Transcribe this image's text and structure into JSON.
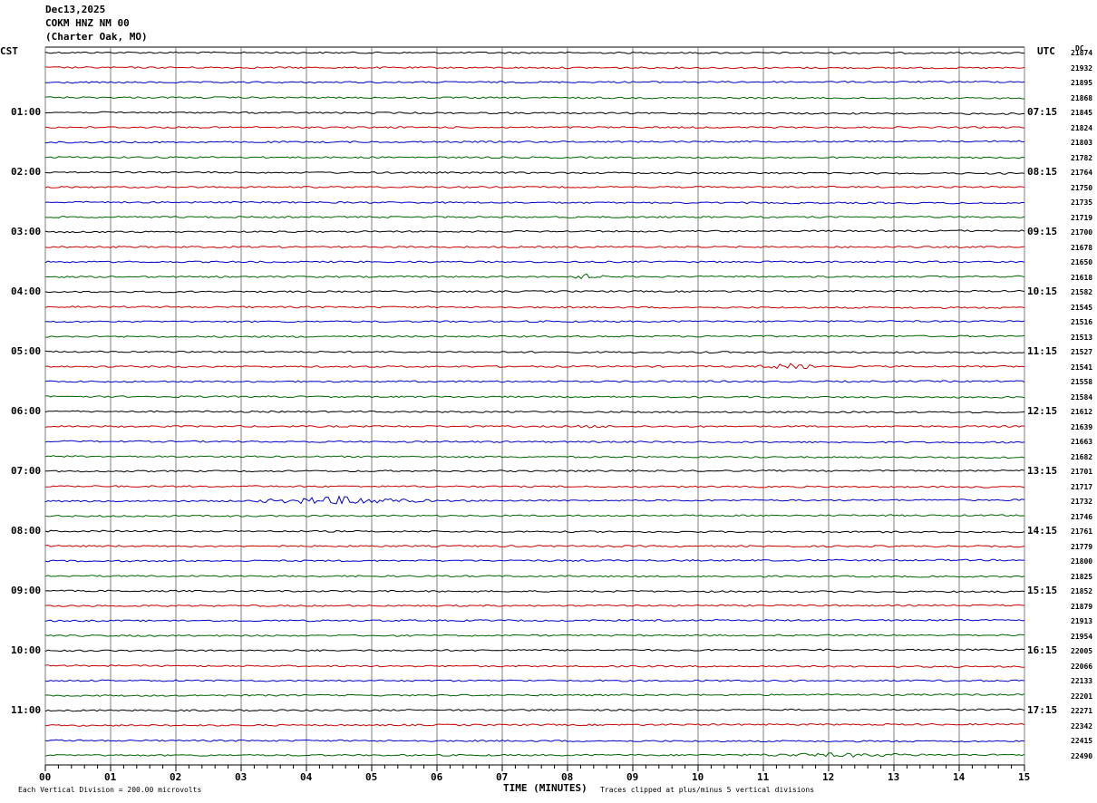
{
  "header": {
    "date": "Dec13,2025",
    "station": "COKM HNZ NM 00",
    "location": "(Charter Oak, MO)"
  },
  "left_zone": "CST",
  "right_zone": "UTC",
  "dc_header": "DC",
  "footer": {
    "scale_note": "Each Vertical Division =  200.00 microvolts",
    "xlabel": "TIME (MINUTES)",
    "clip_note": "Traces clipped at plus/minus 5 vertical divisions"
  },
  "colors": {
    "trace_cycle": [
      "#000000",
      "#cc0000",
      "#0000cc",
      "#006600"
    ],
    "grid": "#808080"
  },
  "chart_data": {
    "type": "line",
    "title": "",
    "xlabel": "TIME (MINUTES)",
    "ylabel": "",
    "xlim": [
      0,
      15
    ],
    "x_ticks": [
      "00",
      "01",
      "02",
      "03",
      "04",
      "05",
      "06",
      "07",
      "08",
      "09",
      "10",
      "11",
      "12",
      "13",
      "14",
      "15"
    ],
    "left_hour_labels": [
      "01:00",
      "02:00",
      "03:00",
      "04:00",
      "05:00",
      "06:00",
      "07:00",
      "08:00",
      "09:00",
      "10:00",
      "11:00"
    ],
    "right_hour_labels": [
      "07:15",
      "08:15",
      "09:15",
      "10:15",
      "11:15",
      "12:15",
      "13:15",
      "14:15",
      "15:15",
      "16:15",
      "17:15"
    ],
    "rows_per_hour": 4,
    "row_dc_values": [
      21874,
      21932,
      21895,
      21868,
      21845,
      21824,
      21803,
      21782,
      21764,
      21750,
      21735,
      21719,
      21700,
      21678,
      21650,
      21618,
      21582,
      21545,
      21516,
      21513,
      21527,
      21541,
      21558,
      21584,
      21612,
      21639,
      21663,
      21682,
      21701,
      21717,
      21732,
      21746,
      21761,
      21779,
      21800,
      21825,
      21852,
      21879,
      21913,
      21954,
      22005,
      22066,
      22133,
      22201,
      22271,
      22342,
      22415,
      22490
    ],
    "events": [
      {
        "row": 15,
        "minute_start": 8.0,
        "minute_end": 8.6,
        "amplitude": 2.5
      },
      {
        "row": 21,
        "minute_start": 10.8,
        "minute_end": 12.0,
        "amplitude": 2.5
      },
      {
        "row": 25,
        "minute_start": 8.0,
        "minute_end": 8.8,
        "amplitude": 1.0
      },
      {
        "row": 30,
        "minute_start": 3.0,
        "minute_end": 6.0,
        "amplitude": 4.0
      },
      {
        "row": 47,
        "minute_start": 10.5,
        "minute_end": 13.8,
        "amplitude": 1.5
      }
    ]
  }
}
